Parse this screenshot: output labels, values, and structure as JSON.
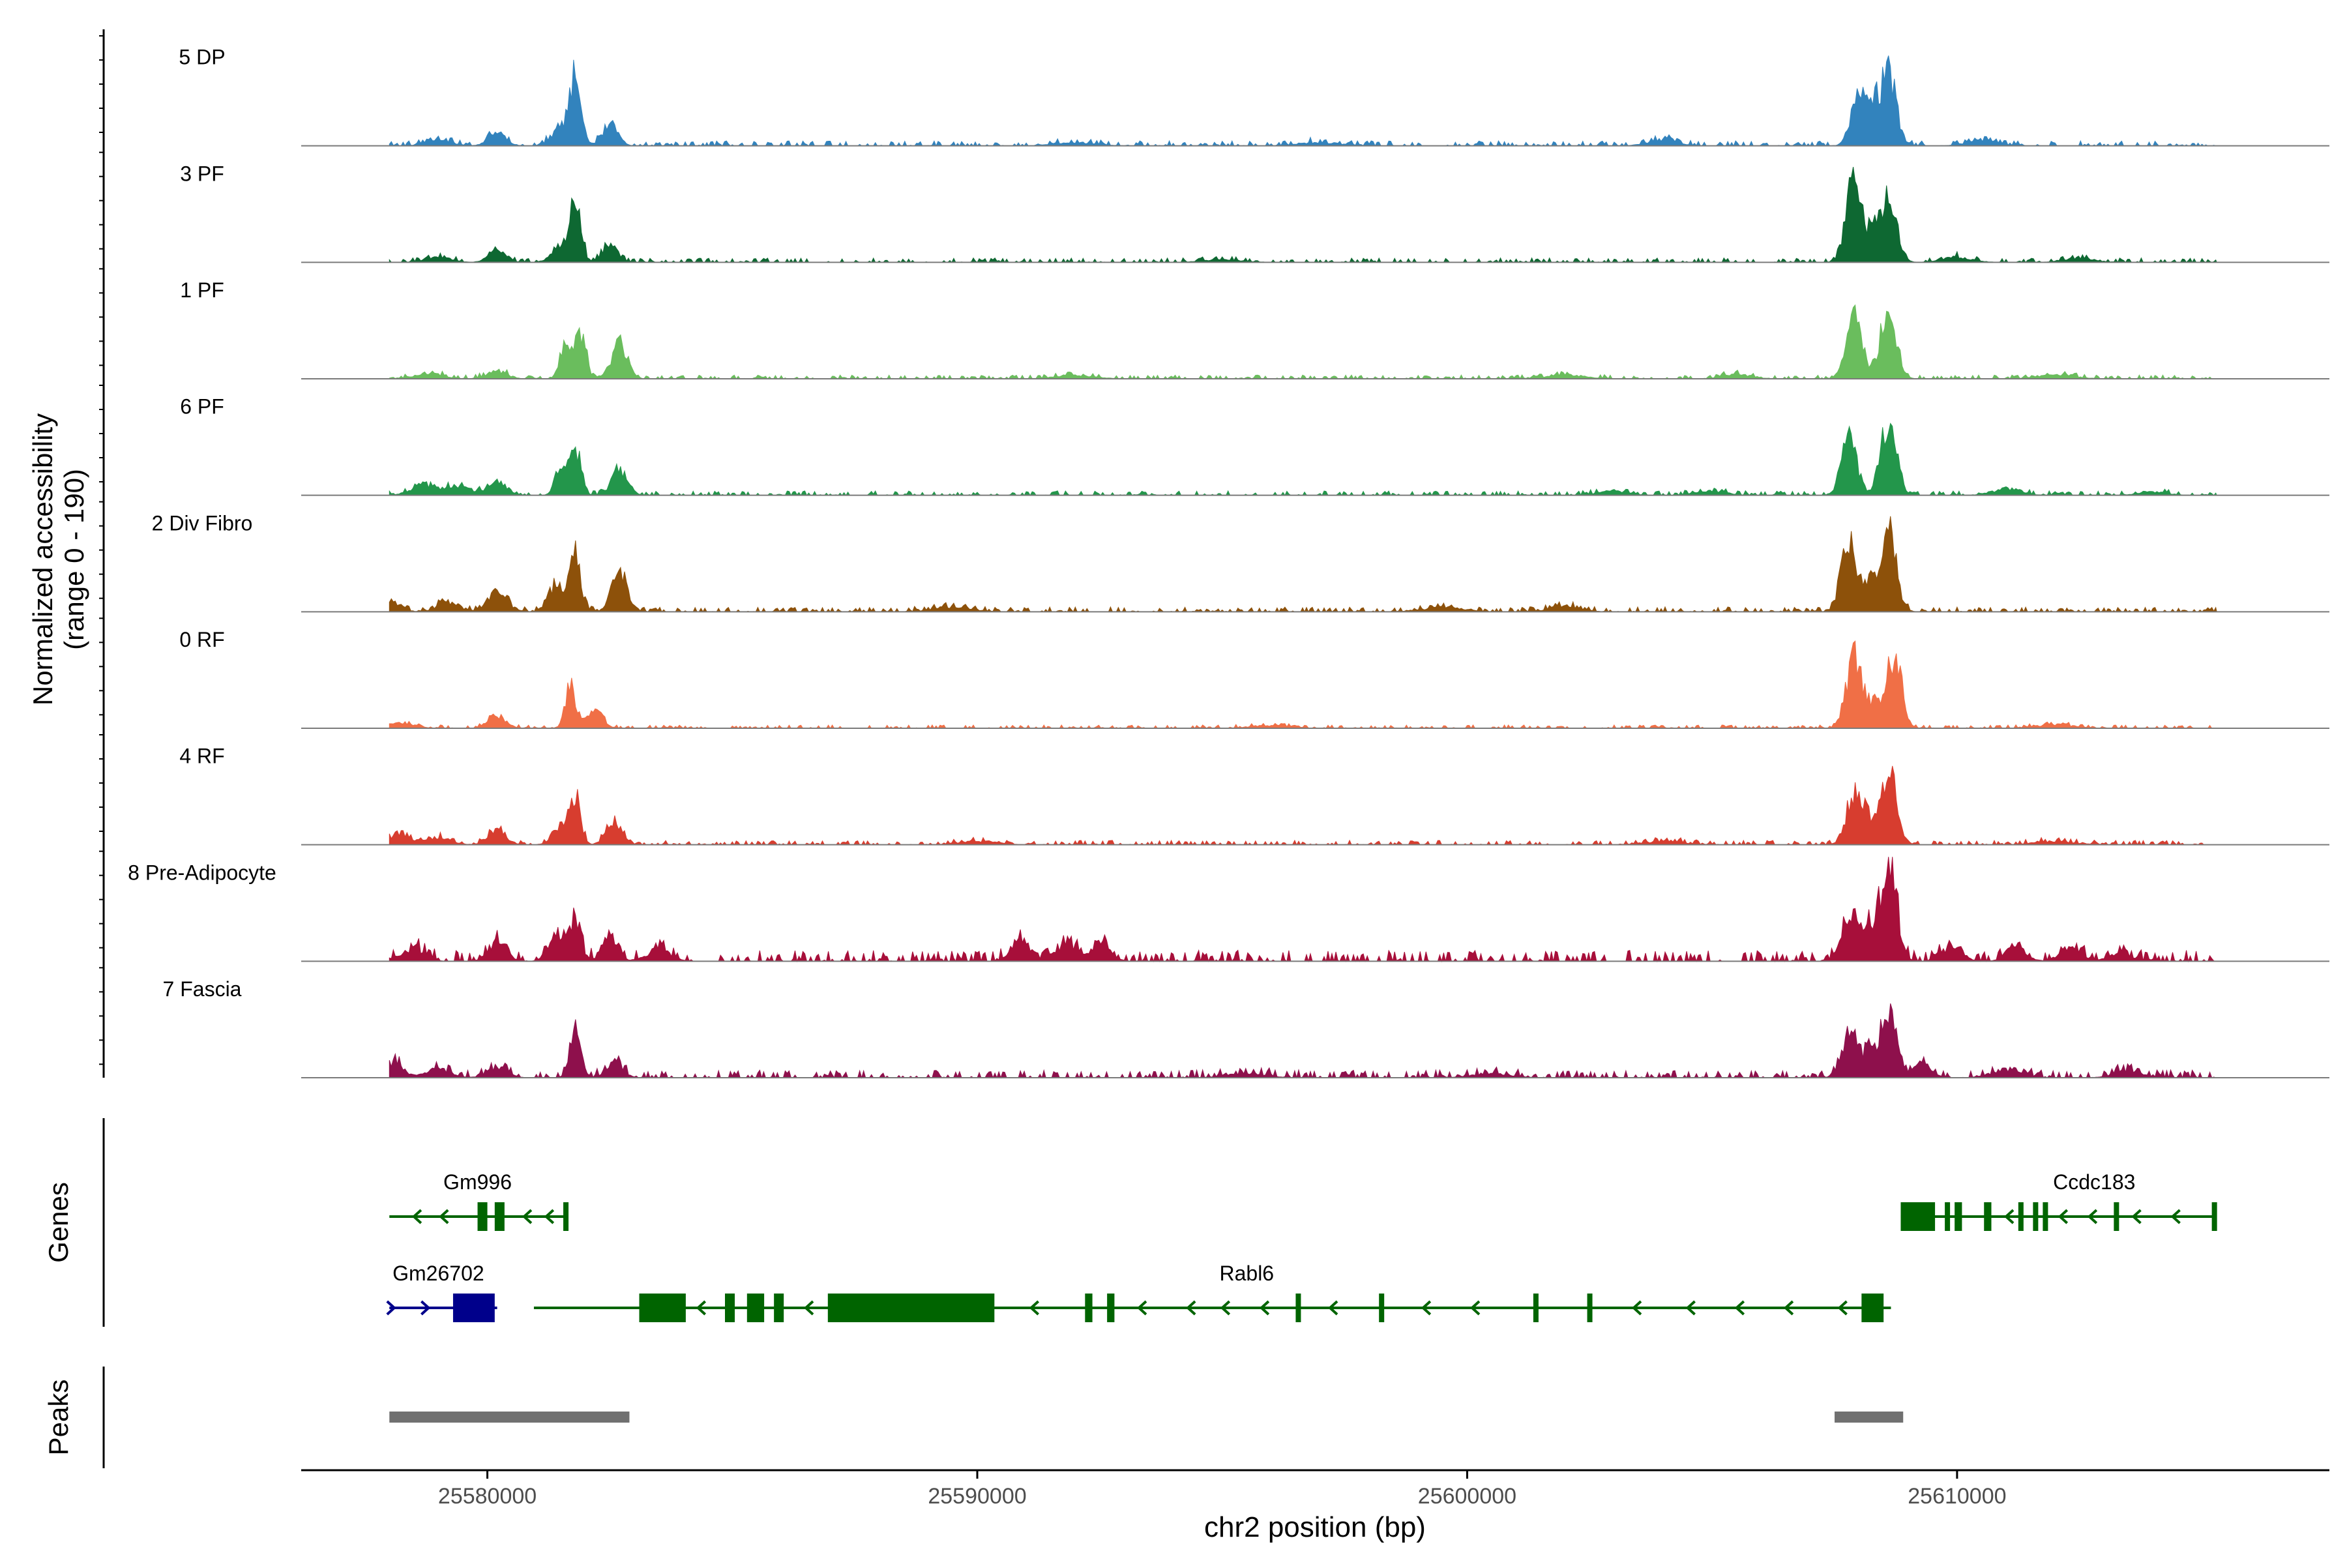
{
  "chart_data": {
    "type": "area",
    "title": "",
    "ylabel_line1": "Normalized accessibility",
    "ylabel_line2": "(range 0 - 190)",
    "xlabel": "chr2 position (bp)",
    "xlim": [
      25576200,
      25617600
    ],
    "ylim": [
      0,
      190
    ],
    "xticks": [
      25580000,
      25590000,
      25600000,
      25610000
    ],
    "xtick_labels": [
      "25580000",
      "25590000",
      "25600000",
      "25610000"
    ],
    "genes_label": "Genes",
    "peaks_label": "Peaks",
    "track_range": [
      25578000,
      25615300
    ],
    "series": [
      {
        "name": "5 DP",
        "color": "#3283BD",
        "noise": 9,
        "seed": 11,
        "peaks": [
          [
            25581800,
            155,
            110
          ],
          [
            25581500,
            45,
            180
          ],
          [
            25582500,
            48,
            160
          ],
          [
            25580200,
            30,
            180
          ],
          [
            25579000,
            16,
            250
          ],
          [
            25608000,
            110,
            160
          ],
          [
            25608600,
            160,
            160
          ],
          [
            25608300,
            70,
            120
          ],
          [
            25604000,
            14,
            300
          ],
          [
            25610500,
            12,
            300
          ],
          [
            25592000,
            8,
            400
          ],
          [
            25597000,
            8,
            400
          ]
        ]
      },
      {
        "name": "3 PF",
        "color": "#0E6832",
        "noise": 8,
        "seed": 23,
        "peaks": [
          [
            25581800,
            150,
            110
          ],
          [
            25581500,
            40,
            180
          ],
          [
            25582500,
            40,
            160
          ],
          [
            25580200,
            25,
            180
          ],
          [
            25579000,
            14,
            250
          ],
          [
            25607900,
            190,
            160
          ],
          [
            25608600,
            150,
            160
          ],
          [
            25608300,
            60,
            120
          ],
          [
            25610000,
            12,
            300
          ],
          [
            25612500,
            10,
            300
          ],
          [
            25595000,
            6,
            400
          ]
        ]
      },
      {
        "name": "1 PF",
        "color": "#6ABD5D",
        "noise": 7,
        "seed": 37,
        "peaks": [
          [
            25581600,
            80,
            110
          ],
          [
            25581900,
            110,
            110
          ],
          [
            25582700,
            80,
            160
          ],
          [
            25580200,
            18,
            200
          ],
          [
            25578800,
            12,
            300
          ],
          [
            25607900,
            150,
            160
          ],
          [
            25608600,
            170,
            160
          ],
          [
            25605500,
            10,
            300
          ],
          [
            25602000,
            8,
            400
          ],
          [
            25592000,
            8,
            400
          ],
          [
            25612000,
            8,
            400
          ]
        ]
      },
      {
        "name": "6 PF",
        "color": "#23964B",
        "noise": 8,
        "seed": 41,
        "peaks": [
          [
            25581500,
            70,
            110
          ],
          [
            25581800,
            110,
            110
          ],
          [
            25582700,
            60,
            160
          ],
          [
            25580200,
            30,
            200
          ],
          [
            25578700,
            25,
            250
          ],
          [
            25579400,
            20,
            250
          ],
          [
            25607800,
            130,
            160
          ],
          [
            25608600,
            170,
            160
          ],
          [
            25603000,
            10,
            300
          ],
          [
            25605000,
            10,
            300
          ],
          [
            25611000,
            14,
            300
          ],
          [
            25614000,
            8,
            300
          ]
        ]
      },
      {
        "name": "2 Div Fibro",
        "color": "#8D510A",
        "noise": 9,
        "seed": 53,
        "peaks": [
          [
            25581800,
            130,
            110
          ],
          [
            25581400,
            60,
            160
          ],
          [
            25582700,
            90,
            160
          ],
          [
            25580200,
            45,
            200
          ],
          [
            25578000,
            28,
            200
          ],
          [
            25579200,
            22,
            220
          ],
          [
            25607800,
            155,
            160
          ],
          [
            25608600,
            185,
            160
          ],
          [
            25608200,
            70,
            120
          ],
          [
            25602000,
            14,
            300
          ],
          [
            25599500,
            10,
            400
          ],
          [
            25589500,
            10,
            400
          ]
        ]
      },
      {
        "name": "0 RF",
        "color": "#F06F46",
        "noise": 6,
        "seed": 67,
        "peaks": [
          [
            25581700,
            95,
            110
          ],
          [
            25582200,
            40,
            160
          ],
          [
            25580200,
            30,
            180
          ],
          [
            25578300,
            12,
            250
          ],
          [
            25607900,
            170,
            160
          ],
          [
            25608700,
            175,
            160
          ],
          [
            25608300,
            50,
            120
          ],
          [
            25612000,
            8,
            400
          ],
          [
            25596000,
            6,
            400
          ]
        ]
      },
      {
        "name": "4 RF",
        "color": "#D73D2F",
        "noise": 8,
        "seed": 79,
        "peaks": [
          [
            25581800,
            105,
            110
          ],
          [
            25581500,
            45,
            160
          ],
          [
            25582600,
            55,
            160
          ],
          [
            25580200,
            35,
            180
          ],
          [
            25578200,
            28,
            200
          ],
          [
            25579000,
            18,
            250
          ],
          [
            25607900,
            120,
            160
          ],
          [
            25608600,
            175,
            160
          ],
          [
            25608200,
            50,
            120
          ],
          [
            25604000,
            8,
            400
          ],
          [
            25612000,
            8,
            400
          ],
          [
            25590000,
            8,
            400
          ]
        ]
      },
      {
        "name": "8 Pre-Adipocyte",
        "color": "#A70F3A",
        "noise": 20,
        "seed": 97,
        "peaks": [
          [
            25581800,
            105,
            110
          ],
          [
            25581400,
            65,
            160
          ],
          [
            25582500,
            55,
            160
          ],
          [
            25580200,
            45,
            180
          ],
          [
            25578500,
            30,
            220
          ],
          [
            25583500,
            25,
            250
          ],
          [
            25590900,
            45,
            200
          ],
          [
            25591800,
            40,
            200
          ],
          [
            25592500,
            40,
            200
          ],
          [
            25607800,
            120,
            160
          ],
          [
            25608600,
            240,
            160
          ],
          [
            25608200,
            80,
            120
          ],
          [
            25609900,
            35,
            200
          ],
          [
            25611200,
            35,
            200
          ],
          [
            25612300,
            32,
            200
          ],
          [
            25613300,
            20,
            200
          ]
        ]
      },
      {
        "name": "7 Fascia",
        "color": "#8E104C",
        "noise": 14,
        "seed": 103,
        "peaks": [
          [
            25578100,
            38,
            180
          ],
          [
            25581800,
            120,
            110
          ],
          [
            25582600,
            40,
            160
          ],
          [
            25580200,
            25,
            200
          ],
          [
            25579000,
            20,
            250
          ],
          [
            25607800,
            110,
            160
          ],
          [
            25608600,
            165,
            160
          ],
          [
            25608200,
            60,
            120
          ],
          [
            25609300,
            30,
            200
          ],
          [
            25611000,
            18,
            300
          ],
          [
            25613500,
            15,
            300
          ],
          [
            25595500,
            10,
            400
          ],
          [
            25600500,
            10,
            400
          ]
        ]
      }
    ],
    "genes": [
      {
        "name": "Gm996",
        "strand": "-",
        "row": 0,
        "start": 25578000,
        "end": 25581650,
        "color": "#006400",
        "exons": [
          [
            25579800,
            25580000
          ],
          [
            25580150,
            25580350
          ],
          [
            25581550,
            25581650
          ]
        ],
        "arrows": [
          25578500,
          25579050,
          25580750,
          25581200
        ],
        "label_x": 25579800
      },
      {
        "name": "Ccdc183",
        "strand": "-",
        "row": 0,
        "start": 25608850,
        "end": 25615300,
        "color": "#006400",
        "exons": [
          [
            25608850,
            25609550
          ],
          [
            25609750,
            25609850
          ],
          [
            25609950,
            25610100
          ],
          [
            25610550,
            25610700
          ],
          [
            25611250,
            25611350
          ],
          [
            25611550,
            25611650
          ],
          [
            25611750,
            25611850
          ],
          [
            25613200,
            25613300
          ],
          [
            25615200,
            25615300
          ]
        ],
        "arrows": [
          25611000,
          25612100,
          25612700,
          25613600,
          25614400
        ],
        "label_x": 25612800
      },
      {
        "name": "Gm26702",
        "strand": "+",
        "row": 1,
        "start": 25578000,
        "end": 25580200,
        "color": "#00008B",
        "exons": [
          [
            25579300,
            25580150
          ]
        ],
        "arrows": [
          25578100,
          25578800
        ],
        "label_x": 25579000
      },
      {
        "name": "Rabl6",
        "strand": "-",
        "row": 1,
        "start": 25580950,
        "end": 25608650,
        "color": "#006400",
        "exons": [
          [
            25583100,
            25584050
          ],
          [
            25584850,
            25585050
          ],
          [
            25585300,
            25585650
          ],
          [
            25585850,
            25586050
          ],
          [
            25586950,
            25590350
          ],
          [
            25592200,
            25592350
          ],
          [
            25592650,
            25592800
          ],
          [
            25596500,
            25596600
          ],
          [
            25598200,
            25598300
          ],
          [
            25601350,
            25601400
          ],
          [
            25602450,
            25602550
          ],
          [
            25608050,
            25608500
          ]
        ],
        "arrows": [
          25584300,
          25586500,
          25591100,
          25593300,
          25594300,
          25595000,
          25595800,
          25597200,
          25599100,
          25600100,
          25603400,
          25604500,
          25605500,
          25606500,
          25607600
        ],
        "label_x": 25595500
      }
    ],
    "peaks_regions": [
      [
        25578000,
        25582900
      ],
      [
        25607500,
        25608900
      ]
    ]
  }
}
